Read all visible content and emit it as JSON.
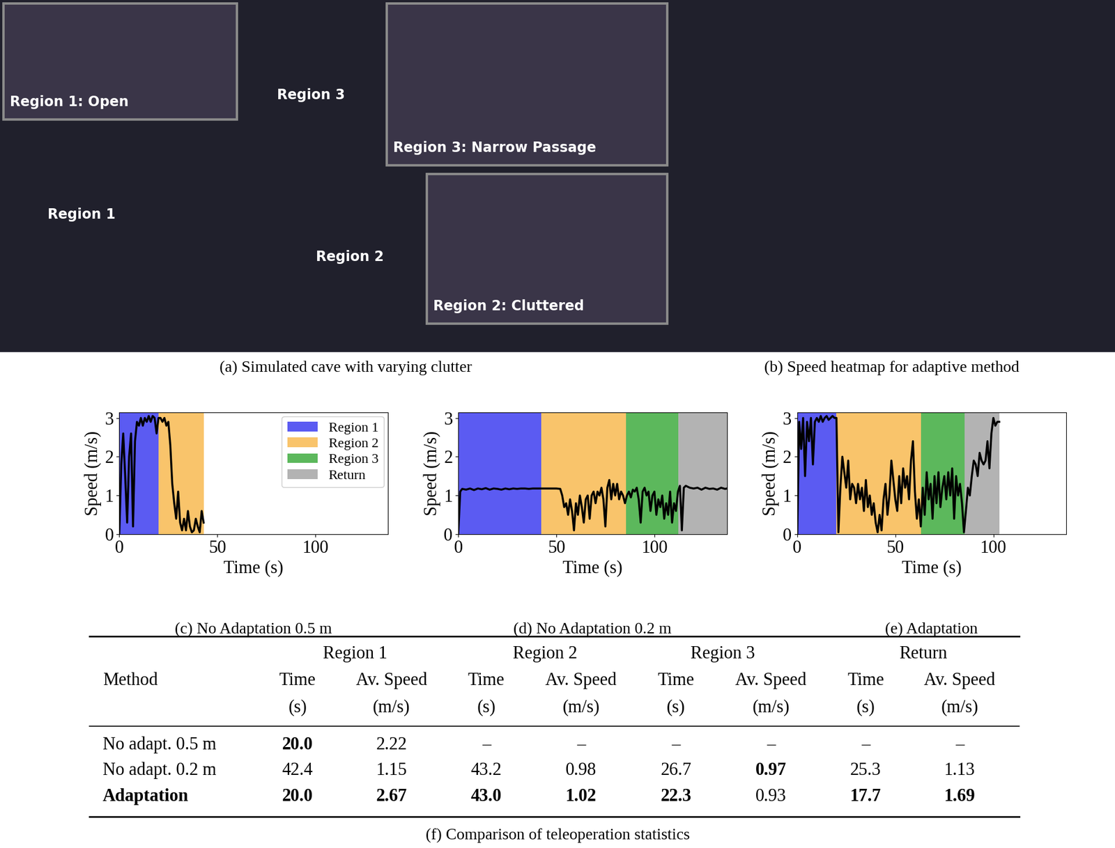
{
  "panels": [
    {
      "caption": "(a) Simulated cave with varying clutter",
      "labels": [
        "Region 1",
        "Region 3",
        "Region 2"
      ],
      "insets": [
        "Region 1: Open",
        "Region 3: Narrow Passage",
        "Region 2: Cluttered"
      ]
    },
    {
      "caption": "(b) Speed heatmap for adaptive method"
    }
  ],
  "regions": [
    {
      "name": "Region 1",
      "color": "#5b5bf2"
    },
    {
      "name": "Region 2",
      "color": "#f9c46b"
    },
    {
      "name": "Region 3",
      "color": "#5cb85c"
    },
    {
      "name": "Return",
      "color": "#b3b3b3"
    }
  ],
  "chart_data": [
    {
      "type": "line",
      "title": "(c) No Adaptation 0.5 m",
      "x_label": "Time (s)",
      "y_label": "Speed (m/s)",
      "color": "#000000",
      "legend": "upper right",
      "xlim": [
        0,
        137
      ],
      "xticks": [
        0,
        50,
        100
      ],
      "ylim": [
        0,
        3.15
      ],
      "yticks": [
        0,
        1,
        2,
        3
      ],
      "spans": [
        [
          0,
          20
        ],
        [
          20,
          43
        ]
      ],
      "x": [
        0,
        1,
        2,
        3,
        4,
        5,
        6,
        7,
        8,
        9,
        10,
        11,
        12,
        13,
        14,
        15,
        16,
        17,
        18,
        19,
        20,
        21,
        22,
        23,
        24,
        25,
        26,
        27,
        28,
        29,
        30,
        31,
        32,
        33,
        34,
        35,
        36,
        37,
        38,
        39,
        40,
        41,
        42,
        43
      ],
      "values": [
        0,
        1.8,
        2.6,
        1.5,
        0.3,
        2.0,
        2.6,
        0.2,
        2.4,
        2.9,
        2.8,
        3.0,
        2.8,
        3.0,
        2.9,
        3.05,
        2.9,
        3.05,
        3.0,
        2.6,
        3.0,
        3.0,
        2.9,
        3.0,
        2.8,
        2.9,
        2.3,
        1.3,
        0.8,
        0.4,
        1.1,
        0.3,
        0.1,
        0.4,
        0.1,
        0.6,
        0.2,
        0.05,
        0.1,
        0.4,
        0.2,
        0.05,
        0.6,
        0.3
      ]
    },
    {
      "type": "line",
      "title": "(d) No Adaptation 0.2 m",
      "x_label": "Time (s)",
      "y_label": "Speed (m/s)",
      "color": "#000000",
      "xlim": [
        0,
        137
      ],
      "xticks": [
        0,
        50,
        100
      ],
      "ylim": [
        0,
        3.15
      ],
      "yticks": [
        0,
        1,
        2,
        3
      ],
      "spans": [
        [
          0,
          42.4
        ],
        [
          42.4,
          85.6
        ],
        [
          85.6,
          112.3
        ],
        [
          112.3,
          137
        ]
      ],
      "x": [
        0,
        1,
        2,
        4,
        6,
        8,
        10,
        12,
        14,
        16,
        18,
        20,
        22,
        24,
        26,
        28,
        30,
        32,
        34,
        36,
        38,
        40,
        42,
        44,
        46,
        48,
        50,
        52,
        53,
        54,
        55,
        56,
        57,
        58,
        59,
        60,
        61,
        62,
        63,
        64,
        65,
        66,
        67,
        68,
        69,
        70,
        71,
        72,
        73,
        74,
        75,
        76,
        77,
        78,
        79,
        80,
        81,
        82,
        83,
        84,
        85,
        86,
        87,
        88,
        89,
        90,
        91,
        92,
        93,
        94,
        95,
        96,
        97,
        98,
        99,
        100,
        101,
        102,
        103,
        104,
        105,
        106,
        107,
        108,
        109,
        110,
        111,
        112,
        113,
        114,
        115,
        116,
        118,
        120,
        122,
        124,
        126,
        128,
        130,
        132,
        134,
        136,
        137
      ],
      "values": [
        0,
        1.1,
        1.17,
        1.15,
        1.18,
        1.14,
        1.18,
        1.16,
        1.19,
        1.15,
        1.18,
        1.17,
        1.15,
        1.18,
        1.16,
        1.18,
        1.17,
        1.18,
        1.18,
        1.17,
        1.18,
        1.18,
        1.18,
        1.18,
        1.18,
        1.18,
        1.18,
        1.17,
        1.0,
        0.7,
        0.8,
        0.5,
        0.9,
        0.6,
        0.1,
        0.8,
        0.5,
        1.0,
        0.7,
        0.3,
        0.9,
        1.0,
        0.4,
        1.0,
        1.1,
        0.8,
        1.1,
        1.0,
        1.2,
        0.9,
        0.2,
        1.2,
        1.4,
        0.9,
        1.3,
        1.0,
        1.3,
        0.9,
        1.1,
        1.0,
        0.8,
        1.0,
        1.1,
        0.95,
        1.15,
        1.1,
        1.2,
        0.9,
        0.3,
        1.1,
        1.2,
        1.0,
        1.1,
        0.6,
        1.0,
        1.1,
        0.5,
        0.9,
        0.7,
        1.0,
        0.4,
        0.8,
        0.5,
        1.1,
        0.3,
        0.8,
        0.6,
        1.1,
        1.25,
        0.1,
        1.2,
        1.25,
        1.2,
        1.18,
        1.2,
        1.15,
        1.2,
        1.17,
        1.18,
        1.15,
        1.2,
        1.17,
        1.18
      ]
    },
    {
      "type": "line",
      "title": "(e) Adaptation",
      "x_label": "Time (s)",
      "y_label": "Speed (m/s)",
      "color": "#000000",
      "xlim": [
        0,
        137
      ],
      "xticks": [
        0,
        50,
        100
      ],
      "ylim": [
        0,
        3.15
      ],
      "yticks": [
        0,
        1,
        2,
        3
      ],
      "spans": [
        [
          0,
          20
        ],
        [
          20,
          63
        ],
        [
          63,
          85.3
        ],
        [
          85.3,
          103
        ]
      ],
      "x": [
        0,
        1,
        2,
        3,
        4,
        5,
        6,
        7,
        8,
        9,
        10,
        11,
        12,
        13,
        14,
        15,
        16,
        17,
        18,
        19,
        20,
        21,
        22,
        23,
        24,
        25,
        26,
        27,
        28,
        29,
        30,
        31,
        32,
        33,
        34,
        35,
        36,
        37,
        38,
        39,
        40,
        41,
        42,
        43,
        44,
        45,
        46,
        47,
        48,
        49,
        50,
        51,
        52,
        53,
        54,
        55,
        56,
        57,
        58,
        59,
        60,
        61,
        62,
        63,
        64,
        65,
        66,
        67,
        68,
        69,
        70,
        71,
        72,
        73,
        74,
        75,
        76,
        77,
        78,
        79,
        80,
        81,
        82,
        83,
        84,
        85,
        86,
        87,
        88,
        89,
        90,
        91,
        92,
        93,
        94,
        95,
        96,
        97,
        98,
        99,
        100,
        101,
        102,
        103
      ],
      "values": [
        0,
        2.9,
        2.2,
        3.0,
        1.5,
        2.9,
        2.4,
        3.0,
        1.8,
        2.9,
        3.0,
        2.9,
        3.05,
        2.9,
        3.0,
        3.05,
        2.95,
        3.0,
        3.05,
        3.0,
        3.0,
        0.05,
        1.2,
        2.0,
        1.6,
        1.2,
        1.9,
        0.9,
        1.3,
        1.2,
        0.8,
        1.3,
        0.9,
        1.2,
        0.6,
        1.4,
        0.7,
        1.0,
        0.5,
        0.8,
        0.3,
        0.05,
        0.5,
        0.1,
        0.9,
        1.3,
        0.5,
        1.0,
        1.9,
        1.4,
        0.9,
        0.6,
        1.5,
        0.8,
        1.7,
        1.2,
        1.5,
        0.9,
        1.9,
        2.4,
        1.1,
        0.4,
        0.9,
        0.2,
        1.2,
        0.5,
        1.6,
        0.9,
        1.3,
        0.4,
        1.5,
        0.8,
        1.6,
        0.7,
        1.2,
        1.5,
        0.9,
        1.6,
        1.0,
        1.7,
        0.4,
        1.5,
        1.0,
        1.3,
        0.8,
        0.05,
        0.6,
        1.2,
        1.0,
        1.5,
        1.9,
        1.8,
        1.5,
        2.1,
        1.9,
        1.8,
        1.9,
        2.4,
        1.7,
        2.6,
        3.0,
        2.8,
        2.9,
        2.9
      ]
    }
  ],
  "table": {
    "caption": "(f) Comparison of teleoperation statistics",
    "method_header": "Method",
    "groups": [
      "Region 1",
      "Region 2",
      "Region 3",
      "Return"
    ],
    "sub": [
      "Time",
      "Av. Speed"
    ],
    "units": [
      "(s)",
      "(m/s)"
    ],
    "rows": [
      {
        "method": "No adapt. 0.5 m",
        "method_bold": false,
        "cells": [
          "20.0",
          "2.22",
          "–",
          "–",
          "–",
          "–",
          "–",
          "–"
        ],
        "bold": [
          true,
          false,
          false,
          false,
          false,
          false,
          false,
          false
        ]
      },
      {
        "method": "No adapt. 0.2 m",
        "method_bold": false,
        "cells": [
          "42.4",
          "1.15",
          "43.2",
          "0.98",
          "26.7",
          "0.97",
          "25.3",
          "1.13"
        ],
        "bold": [
          false,
          false,
          false,
          false,
          false,
          true,
          false,
          false
        ]
      },
      {
        "method": "Adaptation",
        "method_bold": true,
        "cells": [
          "20.0",
          "2.67",
          "43.0",
          "1.02",
          "22.3",
          "0.93",
          "17.7",
          "1.69"
        ],
        "bold": [
          true,
          true,
          true,
          true,
          true,
          false,
          true,
          true
        ]
      }
    ]
  }
}
